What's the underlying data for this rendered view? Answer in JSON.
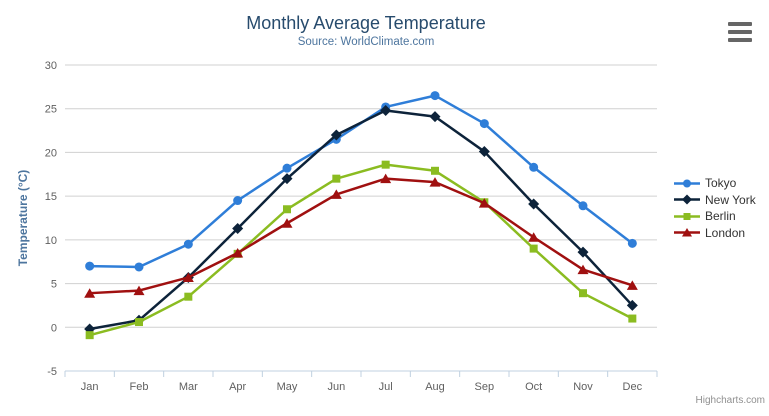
{
  "chart_data": {
    "type": "line",
    "title": "Monthly Average Temperature",
    "subtitle": "Source: WorldClimate.com",
    "categories": [
      "Jan",
      "Feb",
      "Mar",
      "Apr",
      "May",
      "Jun",
      "Jul",
      "Aug",
      "Sep",
      "Oct",
      "Nov",
      "Dec"
    ],
    "xlabel": "",
    "ylabel": "Temperature (°C)",
    "ylim": [
      -5,
      30
    ],
    "ytick_step": 5,
    "yticks": [
      "-5",
      "0",
      "5",
      "10",
      "15",
      "20",
      "25",
      "30"
    ],
    "grid": true,
    "legend_position": "right",
    "series": [
      {
        "name": "Tokyo",
        "color": "#2f7ed8",
        "marker": "circle",
        "values": [
          7.0,
          6.9,
          9.5,
          14.5,
          18.2,
          21.5,
          25.2,
          26.5,
          23.3,
          18.3,
          13.9,
          9.6
        ]
      },
      {
        "name": "New York",
        "color": "#0d233a",
        "marker": "diamond",
        "values": [
          -0.2,
          0.8,
          5.7,
          11.3,
          17.0,
          22.0,
          24.8,
          24.1,
          20.1,
          14.1,
          8.6,
          2.5
        ]
      },
      {
        "name": "Berlin",
        "color": "#8bbc21",
        "marker": "square",
        "values": [
          -0.9,
          0.6,
          3.5,
          8.4,
          13.5,
          17.0,
          18.6,
          17.9,
          14.3,
          9.0,
          3.9,
          1.0
        ]
      },
      {
        "name": "London",
        "color": "#a01010",
        "marker": "triangle",
        "values": [
          3.9,
          4.2,
          5.7,
          8.5,
          11.9,
          15.2,
          17.0,
          16.6,
          14.2,
          10.3,
          6.6,
          4.8
        ]
      }
    ]
  },
  "export_menu": {
    "icon": "hamburger-icon"
  },
  "credit": {
    "label": "Highcharts.com"
  },
  "colors": {
    "title": "#274b6d",
    "subtitle": "#4d759e",
    "axis_label": "#606060",
    "axis_line": "#c0d0e0",
    "gridline": "#d0d0d0",
    "y_axis_title": "#4d759e",
    "legend_text": "#333333",
    "credit_text": "#909090",
    "menu_icon": "#666666"
  }
}
